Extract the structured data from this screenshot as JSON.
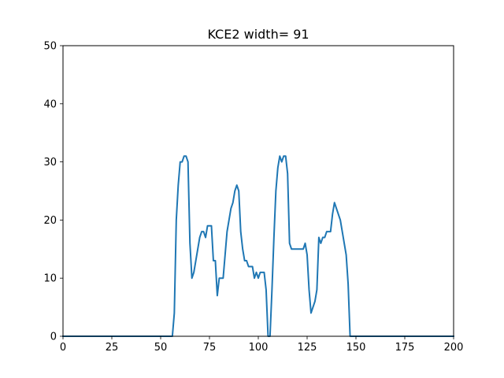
{
  "chart_data": {
    "type": "line",
    "title": "KCE2 width= 91",
    "xlabel": "",
    "ylabel": "",
    "xlim": [
      0,
      200
    ],
    "ylim": [
      0,
      50
    ],
    "xticks": [
      0,
      25,
      50,
      75,
      100,
      125,
      150,
      175,
      200
    ],
    "yticks": [
      0,
      10,
      20,
      30,
      40,
      50
    ],
    "grid": false,
    "line_color": "#1f77b4",
    "series": [
      {
        "x": [
          0,
          1,
          2,
          3,
          4,
          5,
          6,
          7,
          8,
          9,
          10,
          11,
          12,
          13,
          14,
          15,
          16,
          17,
          18,
          19,
          20,
          21,
          22,
          23,
          24,
          25,
          26,
          27,
          28,
          29,
          30,
          31,
          32,
          33,
          34,
          35,
          36,
          37,
          38,
          39,
          40,
          41,
          42,
          43,
          44,
          45,
          46,
          47,
          48,
          49,
          50,
          51,
          52,
          53,
          54,
          55,
          56,
          57,
          58,
          59,
          60,
          61,
          62,
          63,
          64,
          65,
          66,
          67,
          68,
          69,
          70,
          71,
          72,
          73,
          74,
          75,
          76,
          77,
          78,
          79,
          80,
          81,
          82,
          83,
          84,
          85,
          86,
          87,
          88,
          89,
          90,
          91,
          92,
          93,
          94,
          95,
          96,
          97,
          98,
          99,
          100,
          101,
          102,
          103,
          104,
          105,
          106,
          107,
          108,
          109,
          110,
          111,
          112,
          113,
          114,
          115,
          116,
          117,
          118,
          119,
          120,
          121,
          122,
          123,
          124,
          125,
          126,
          127,
          128,
          129,
          130,
          131,
          132,
          133,
          134,
          135,
          136,
          137,
          138,
          139,
          140,
          141,
          142,
          143,
          144,
          145,
          146,
          147,
          148,
          149,
          150,
          151,
          152,
          153,
          154,
          155,
          156,
          157,
          158,
          159,
          160,
          161,
          162,
          163,
          164,
          165,
          166,
          167,
          168,
          169,
          170,
          171,
          172,
          173,
          174,
          175,
          176,
          177,
          178,
          179,
          180,
          181,
          182,
          183,
          184,
          185,
          186,
          187,
          188,
          189,
          190,
          191,
          192,
          193,
          194,
          195,
          196,
          197,
          198,
          199,
          200
        ],
        "y": [
          0,
          0,
          0,
          0,
          0,
          0,
          0,
          0,
          0,
          0,
          0,
          0,
          0,
          0,
          0,
          0,
          0,
          0,
          0,
          0,
          0,
          0,
          0,
          0,
          0,
          0,
          0,
          0,
          0,
          0,
          0,
          0,
          0,
          0,
          0,
          0,
          0,
          0,
          0,
          0,
          0,
          0,
          0,
          0,
          0,
          0,
          0,
          0,
          0,
          0,
          0,
          0,
          0,
          0,
          0,
          0,
          0,
          4,
          20,
          26,
          30,
          30,
          31,
          31,
          30,
          16,
          10,
          11,
          13,
          15,
          17,
          18,
          18,
          17,
          19,
          19,
          19,
          13,
          13,
          7,
          10,
          10,
          10,
          14,
          18,
          20,
          22,
          23,
          25,
          26,
          25,
          18,
          15,
          13,
          13,
          12,
          12,
          12,
          10,
          11,
          10,
          11,
          11,
          11,
          8,
          0,
          0,
          8,
          17,
          25,
          29,
          31,
          30,
          31,
          31,
          28,
          16,
          15,
          15,
          15,
          15,
          15,
          15,
          15,
          16,
          14,
          8,
          4,
          5,
          6,
          8,
          17,
          16,
          17,
          17,
          18,
          18,
          18,
          21,
          23,
          22,
          21,
          20,
          18,
          16,
          14,
          9,
          0,
          0,
          0,
          0,
          0,
          0,
          0,
          0,
          0,
          0,
          0,
          0,
          0,
          0,
          0,
          0,
          0,
          0,
          0,
          0,
          0,
          0,
          0,
          0,
          0,
          0,
          0,
          0,
          0,
          0,
          0,
          0,
          0,
          0,
          0,
          0,
          0,
          0,
          0,
          0,
          0,
          0,
          0,
          0,
          0,
          0,
          0,
          0,
          0,
          0,
          0,
          0,
          0,
          0
        ]
      }
    ]
  }
}
